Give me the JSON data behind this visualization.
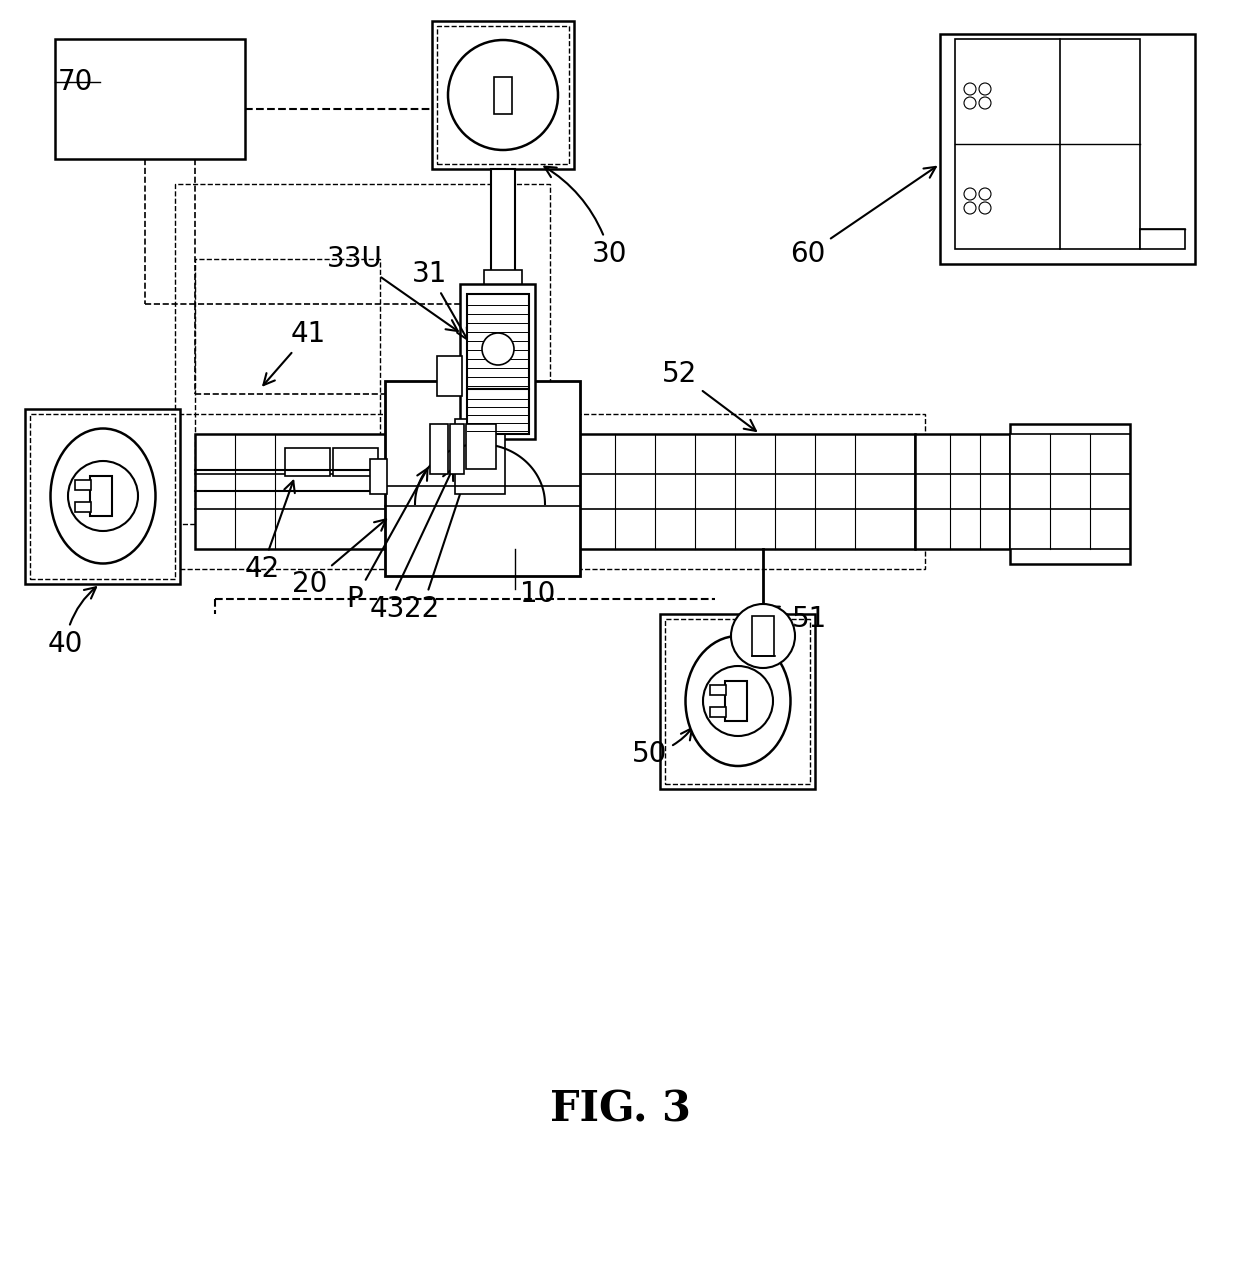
{
  "bg_color": "#ffffff",
  "line_color": "#000000",
  "fig_label": "FIG. 3",
  "gray_light": "#e8e8e8",
  "gray_med": "#cccccc"
}
